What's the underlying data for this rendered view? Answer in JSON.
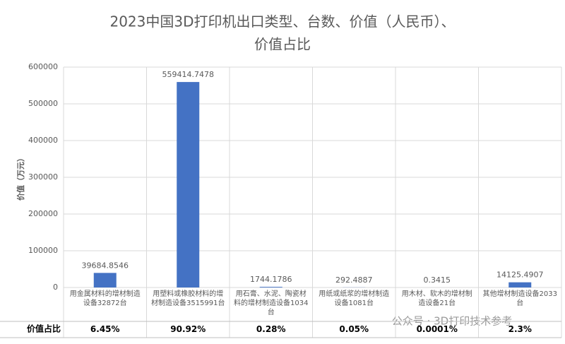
{
  "chart_data": {
    "type": "bar",
    "title": [
      "2023中国3D打印机出口类型、台数、价值（人民币）、",
      "价值占比"
    ],
    "y_label": "价值（万元）",
    "categories": [
      "用金属材料的增材制造设备32872台",
      "用塑料或橡胶材料的增材制造设备3515991台",
      "用石膏、水泥、陶瓷材料的增材制造设备1034台",
      "用纸或纸浆的增材制造设备1081台",
      "用木材、软木的增材制造设备21台",
      "其他增材制造设备2033台"
    ],
    "values": [
      39684.8546,
      559414.7478,
      1744.1786,
      292.4887,
      0.3415,
      14125.4907
    ],
    "color": "#4472c4",
    "ylim": [
      0,
      600000
    ],
    "yticks": [
      0,
      100000,
      200000,
      300000,
      400000,
      500000,
      600000
    ],
    "grid": true,
    "share_label": "价值占比",
    "shares": [
      "6.45%",
      "90.92%",
      "0.28%",
      "0.05%",
      "0.0001%",
      "2.3%"
    ],
    "watermark": "公众号 · 3D打印技术参考"
  }
}
